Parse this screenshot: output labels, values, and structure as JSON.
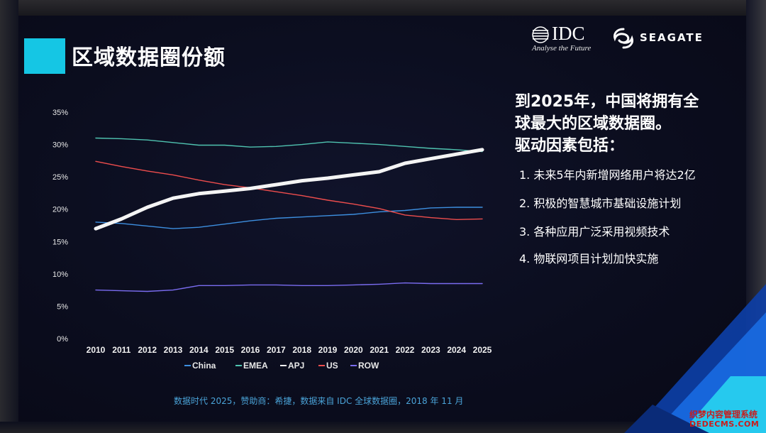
{
  "header": {
    "title": "区域数据圈份额",
    "logos": [
      {
        "name": "IDC",
        "tagline": "Analyse the Future"
      },
      {
        "name": "SEAGATE"
      }
    ]
  },
  "headline": [
    "到2025年，中国将拥有全",
    "球最大的区域数据圈。",
    "驱动因素包括："
  ],
  "points": [
    "1. 未来5年内新增网络用户将达2亿",
    "2. 积极的智慧城市基础设施计划",
    "3. 各种应用广泛采用视频技术",
    "4. 物联网项目计划加快实施"
  ],
  "footer_note": "数据时代 2025，赞助商：希捷，数据来自 IDC 全球数据圈，2018 年 11 月",
  "watermark": {
    "line1": "织梦内容管理系统",
    "line2": "DEDECMS.COM"
  },
  "colors": {
    "accent": "#15c6e4",
    "background": "#0b0d1e"
  },
  "chart_data": {
    "type": "line",
    "title": "",
    "xlabel": "",
    "ylabel": "",
    "x": [
      "2010",
      "2011",
      "2012",
      "2013",
      "2014",
      "2015",
      "2016",
      "2017",
      "2018",
      "2019",
      "2020",
      "2021",
      "2022",
      "2023",
      "2024",
      "2025"
    ],
    "ylim": [
      0,
      35
    ],
    "y_ticks": [
      "0%",
      "5%",
      "10%",
      "15%",
      "20%",
      "25%",
      "30%",
      "35%"
    ],
    "y_tick_values": [
      0,
      5,
      10,
      15,
      20,
      25,
      30,
      35
    ],
    "grid": false,
    "legend": "bottom",
    "series": [
      {
        "name": "China",
        "color": "#3d8fe0",
        "width": 1.4,
        "values": [
          18.0,
          17.8,
          17.4,
          17.0,
          17.2,
          17.7,
          18.2,
          18.6,
          18.8,
          19.0,
          19.2,
          19.6,
          19.8,
          20.2,
          20.3,
          20.3
        ]
      },
      {
        "name": "EMEA",
        "color": "#4fc3b0",
        "width": 1.4,
        "values": [
          31.0,
          30.9,
          30.7,
          30.3,
          29.9,
          29.9,
          29.6,
          29.7,
          30.0,
          30.4,
          30.2,
          30.0,
          29.7,
          29.4,
          29.2,
          28.9
        ]
      },
      {
        "name": "APJ",
        "color": "#f4f4f4",
        "width": 5,
        "values": [
          17.0,
          18.5,
          20.3,
          21.7,
          22.4,
          22.8,
          23.2,
          23.8,
          24.4,
          24.8,
          25.3,
          25.8,
          27.1,
          27.8,
          28.5,
          29.2
        ]
      },
      {
        "name": "US",
        "color": "#ee4d4d",
        "width": 1.4,
        "values": [
          27.4,
          26.6,
          25.9,
          25.3,
          24.5,
          23.8,
          23.3,
          22.7,
          22.1,
          21.4,
          20.8,
          20.1,
          19.1,
          18.7,
          18.4,
          18.5
        ]
      },
      {
        "name": "ROW",
        "color": "#7a6cf0",
        "width": 1.4,
        "values": [
          7.5,
          7.4,
          7.3,
          7.5,
          8.2,
          8.2,
          8.3,
          8.3,
          8.2,
          8.2,
          8.3,
          8.4,
          8.6,
          8.5,
          8.5,
          8.5
        ]
      }
    ]
  }
}
